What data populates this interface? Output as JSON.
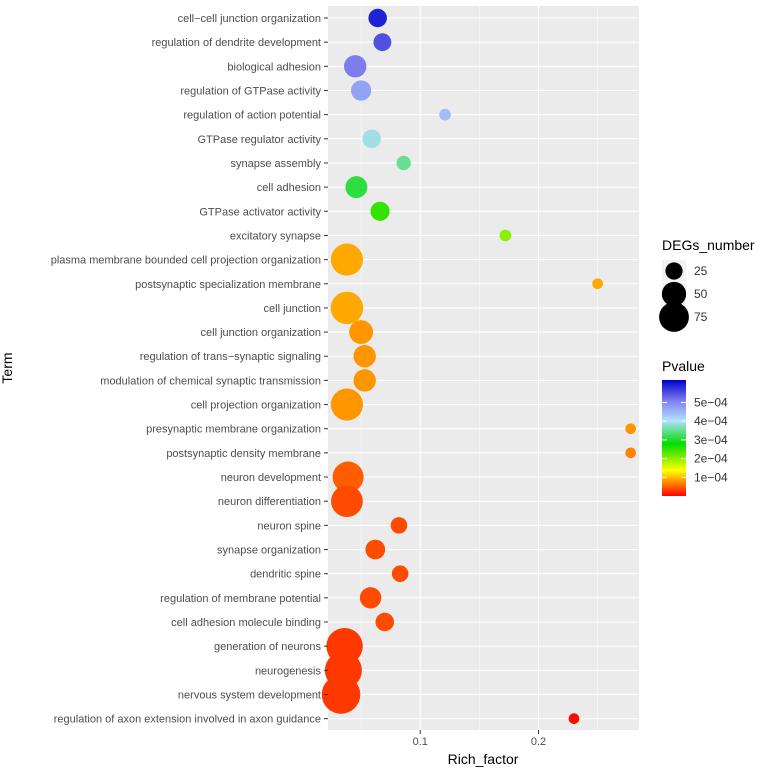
{
  "chart_data": {
    "type": "scatter",
    "title": "",
    "xlabel": "Rich_factor",
    "ylabel": "Term",
    "xlim": [
      0.022,
      0.285
    ],
    "xticks": [
      0.1,
      0.2
    ],
    "xtick_labels": [
      "0.1",
      "0.2"
    ],
    "grid": true,
    "points": [
      {
        "term": "cell−cell junction organization",
        "rich_factor": 0.064,
        "degs": 15,
        "pvalue": 0.00059
      },
      {
        "term": "regulation of dendrite development",
        "rich_factor": 0.068,
        "degs": 14,
        "pvalue": 0.00055
      },
      {
        "term": "biological adhesion",
        "rich_factor": 0.045,
        "degs": 22,
        "pvalue": 0.00051
      },
      {
        "term": "regulation of GTPase activity",
        "rich_factor": 0.05,
        "degs": 18,
        "pvalue": 0.00047
      },
      {
        "term": "regulation of action potential",
        "rich_factor": 0.121,
        "degs": 6,
        "pvalue": 0.00044
      },
      {
        "term": "GTPase regulator activity",
        "rich_factor": 0.059,
        "degs": 15,
        "pvalue": 0.00039
      },
      {
        "term": "synapse assembly",
        "rich_factor": 0.086,
        "degs": 9,
        "pvalue": 0.00035
      },
      {
        "term": "cell adhesion",
        "rich_factor": 0.046,
        "degs": 21,
        "pvalue": 0.00031
      },
      {
        "term": "GTPase activator activity",
        "rich_factor": 0.066,
        "degs": 16,
        "pvalue": 0.00025
      },
      {
        "term": "excitatory synapse",
        "rich_factor": 0.172,
        "degs": 6,
        "pvalue": 0.0002
      },
      {
        "term": "plasma membrane bounded cell projection organization",
        "rich_factor": 0.038,
        "degs": 45,
        "pvalue": 9e-05
      },
      {
        "term": "postsynaptic specialization membrane",
        "rich_factor": 0.25,
        "degs": 5,
        "pvalue": 9e-05
      },
      {
        "term": "cell junction",
        "rich_factor": 0.038,
        "degs": 46,
        "pvalue": 9e-05
      },
      {
        "term": "cell junction organization",
        "rich_factor": 0.05,
        "degs": 25,
        "pvalue": 8e-05
      },
      {
        "term": "regulation of trans−synaptic signaling",
        "rich_factor": 0.053,
        "degs": 22,
        "pvalue": 8e-05
      },
      {
        "term": "modulation of chemical synaptic transmission",
        "rich_factor": 0.053,
        "degs": 22,
        "pvalue": 8e-05
      },
      {
        "term": "cell projection organization",
        "rich_factor": 0.038,
        "degs": 45,
        "pvalue": 8e-05
      },
      {
        "term": "presynaptic membrane organization",
        "rich_factor": 0.278,
        "degs": 5,
        "pvalue": 8e-05
      },
      {
        "term": "postsynaptic density membrane",
        "rich_factor": 0.278,
        "degs": 5,
        "pvalue": 7e-05
      },
      {
        "term": "neuron development",
        "rich_factor": 0.039,
        "degs": 42,
        "pvalue": 5e-05
      },
      {
        "term": "neuron differentiation",
        "rich_factor": 0.038,
        "degs": 44,
        "pvalue": 4e-05
      },
      {
        "term": "neuron spine",
        "rich_factor": 0.082,
        "degs": 12,
        "pvalue": 4e-05
      },
      {
        "term": "synapse organization",
        "rich_factor": 0.062,
        "degs": 17,
        "pvalue": 4e-05
      },
      {
        "term": "dendritic spine",
        "rich_factor": 0.083,
        "degs": 12,
        "pvalue": 4e-05
      },
      {
        "term": "regulation of membrane potential",
        "rich_factor": 0.058,
        "degs": 20,
        "pvalue": 4e-05
      },
      {
        "term": "cell adhesion molecule binding",
        "rich_factor": 0.07,
        "degs": 15,
        "pvalue": 4e-05
      },
      {
        "term": "generation of neurons",
        "rich_factor": 0.036,
        "degs": 58,
        "pvalue": 3e-05
      },
      {
        "term": "neurogenesis",
        "rich_factor": 0.035,
        "degs": 60,
        "pvalue": 3e-05
      },
      {
        "term": "nervous system development",
        "rich_factor": 0.033,
        "degs": 65,
        "pvalue": 3e-05
      },
      {
        "term": "regulation of axon extension involved in axon guidance",
        "rich_factor": 0.23,
        "degs": 5,
        "pvalue": 5e-06
      }
    ],
    "size_legend": {
      "title": "DEGs_number",
      "breaks": [
        25,
        50,
        75
      ],
      "labels": [
        "25",
        "50",
        "75"
      ]
    },
    "color_legend": {
      "title": "Pvalue",
      "range": [
        0,
        0.00062
      ],
      "breaks": [
        0.0001,
        0.0002,
        0.0003,
        0.0004,
        0.0005
      ],
      "labels": [
        "1e−04",
        "2e−04",
        "3e−04",
        "4e−04",
        "5e−04"
      ],
      "colors": [
        "#ff0000",
        "#ffff00",
        "#00dd00",
        "#b3e0ff",
        "#7f7fef",
        "#0000cc"
      ]
    }
  }
}
